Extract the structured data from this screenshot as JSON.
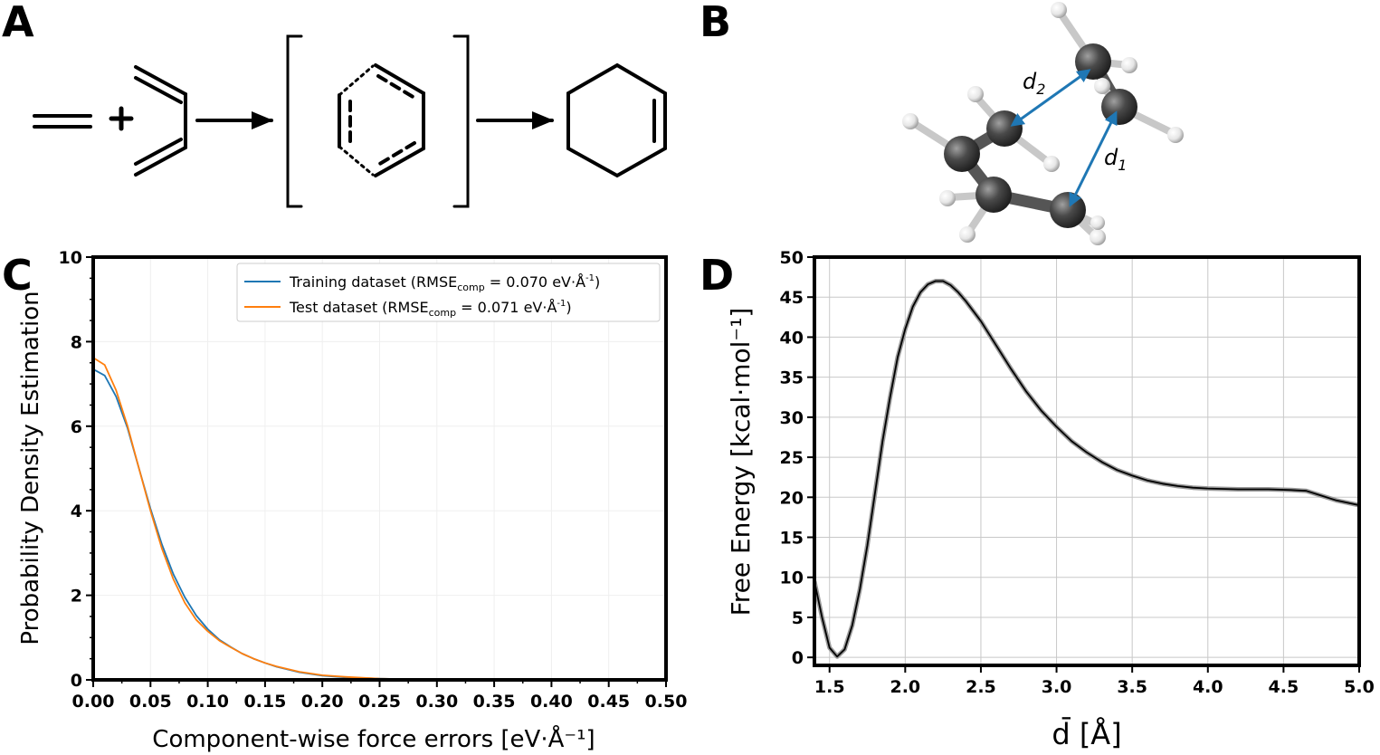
{
  "panels": {
    "a": "A",
    "b": "B",
    "c": "C",
    "d": "D"
  },
  "molecule": {
    "d1_label": "d",
    "d1_sub": "1",
    "d2_label": "d",
    "d2_sub": "2",
    "arrow_color": "#1f77b4",
    "atom_color": "#4a4a4a"
  },
  "chart_data": [
    {
      "type": "line",
      "panel": "C",
      "title": "",
      "xlabel": "Component-wise force errors [eV·Å⁻¹]",
      "ylabel": "Probability Density Estimation",
      "xlim": [
        0,
        0.5
      ],
      "ylim": [
        0,
        10
      ],
      "xticks": [
        "0.00",
        "0.05",
        "0.10",
        "0.15",
        "0.20",
        "0.25",
        "0.30",
        "0.35",
        "0.40",
        "0.45",
        "0.50"
      ],
      "yticks": [
        "0",
        "2",
        "4",
        "6",
        "8",
        "10"
      ],
      "grid": true,
      "legend_position": "top-right",
      "series": [
        {
          "name": "Training dataset (RMSEcomp = 0.070 eV·Å⁻¹)",
          "legend_main": "Training dataset (RMSE",
          "legend_sub": "comp",
          "legend_rest": " = 0.070 eV·Å",
          "legend_sup": "-1",
          "legend_end": ")",
          "color": "#1f77b4",
          "x": [
            0,
            0.01,
            0.02,
            0.03,
            0.04,
            0.05,
            0.06,
            0.07,
            0.08,
            0.09,
            0.1,
            0.11,
            0.12,
            0.13,
            0.14,
            0.15,
            0.16,
            0.18,
            0.2,
            0.22,
            0.25,
            0.28,
            0.3
          ],
          "y": [
            7.35,
            7.2,
            6.7,
            5.95,
            5.0,
            4.05,
            3.2,
            2.5,
            1.95,
            1.52,
            1.2,
            0.95,
            0.78,
            0.62,
            0.5,
            0.4,
            0.31,
            0.18,
            0.1,
            0.06,
            0.03,
            0.01,
            0.0
          ]
        },
        {
          "name": "Test dataset (RMSEcomp = 0.071 eV·Å⁻¹)",
          "legend_main": "Test dataset (RMSE",
          "legend_sub": "comp",
          "legend_rest": " = 0.071 eV·Å",
          "legend_sup": "-1",
          "legend_end": ")",
          "color": "#ff7f0e",
          "x": [
            0,
            0.01,
            0.02,
            0.03,
            0.04,
            0.05,
            0.06,
            0.07,
            0.08,
            0.09,
            0.1,
            0.11,
            0.12,
            0.13,
            0.14,
            0.15,
            0.16,
            0.18,
            0.2,
            0.22,
            0.25,
            0.28,
            0.3
          ],
          "y": [
            7.62,
            7.45,
            6.85,
            6.0,
            5.0,
            4.0,
            3.1,
            2.38,
            1.82,
            1.42,
            1.15,
            0.93,
            0.77,
            0.62,
            0.5,
            0.4,
            0.32,
            0.19,
            0.11,
            0.07,
            0.03,
            0.01,
            0.0
          ]
        }
      ]
    },
    {
      "type": "line",
      "panel": "D",
      "title": "",
      "xlabel": "d̄ [Å]",
      "ylabel": "Free Energy [kcal·mol⁻¹]",
      "xlim": [
        1.4,
        5.0
      ],
      "ylim": [
        -1,
        50
      ],
      "xticks": [
        "1.5",
        "2.0",
        "2.5",
        "3.0",
        "3.5",
        "4.0",
        "4.5",
        "5.0"
      ],
      "yticks": [
        "0",
        "5",
        "10",
        "15",
        "20",
        "25",
        "30",
        "35",
        "40",
        "45",
        "50"
      ],
      "grid": true,
      "series": [
        {
          "color": "#000000",
          "x": [
            1.4,
            1.45,
            1.5,
            1.55,
            1.6,
            1.65,
            1.7,
            1.75,
            1.8,
            1.85,
            1.9,
            1.95,
            2.0,
            2.05,
            2.1,
            2.15,
            2.2,
            2.25,
            2.3,
            2.35,
            2.4,
            2.5,
            2.6,
            2.7,
            2.8,
            2.9,
            3.0,
            3.1,
            3.2,
            3.3,
            3.4,
            3.5,
            3.6,
            3.7,
            3.8,
            3.9,
            4.0,
            4.2,
            4.4,
            4.55,
            4.65,
            4.75,
            4.85,
            5.0
          ],
          "y": [
            9.5,
            5.0,
            1.2,
            0.1,
            1.0,
            4.0,
            8.5,
            14.0,
            20.5,
            27.0,
            32.5,
            37.5,
            41.0,
            43.8,
            45.6,
            46.6,
            47.0,
            47.0,
            46.5,
            45.6,
            44.5,
            42.0,
            39.0,
            36.0,
            33.2,
            30.8,
            28.8,
            27.0,
            25.6,
            24.4,
            23.4,
            22.7,
            22.1,
            21.7,
            21.4,
            21.2,
            21.1,
            21.0,
            21.0,
            20.9,
            20.8,
            20.2,
            19.6,
            19.0
          ]
        }
      ]
    }
  ]
}
